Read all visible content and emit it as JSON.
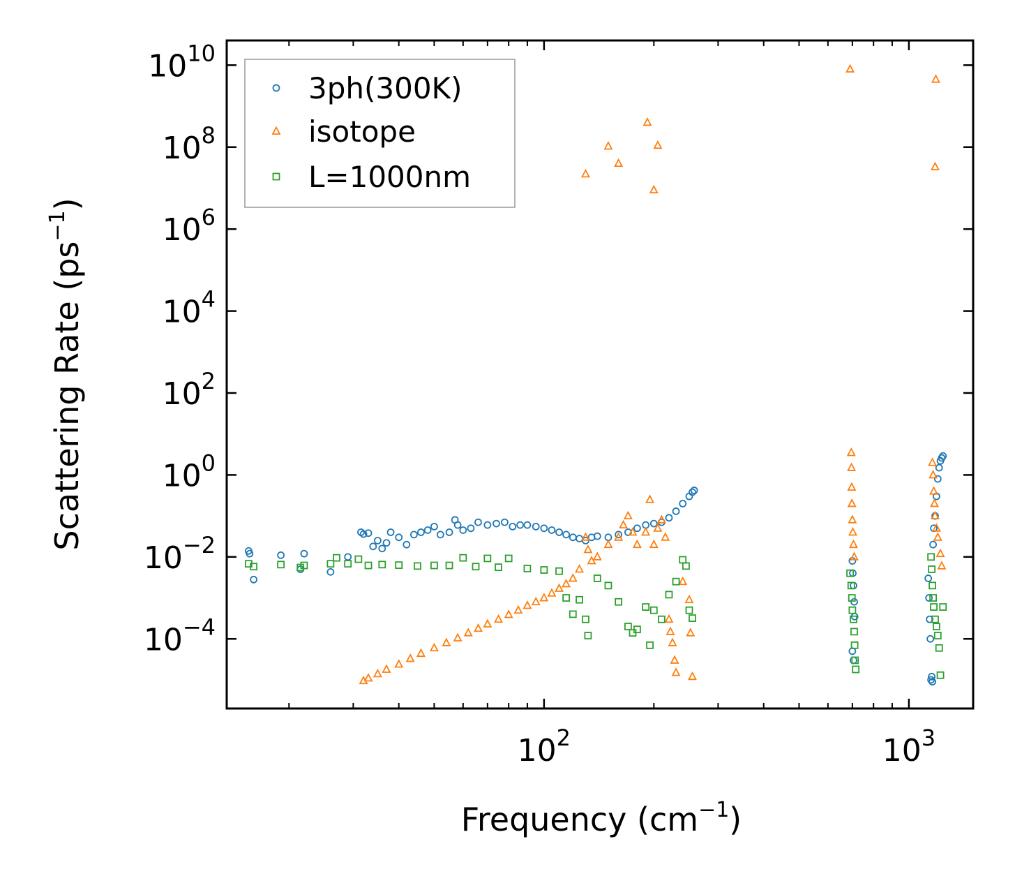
{
  "chart_data": {
    "type": "scatter",
    "xscale": "log",
    "yscale": "log",
    "xlabel": "Frequency (cm",
    "xlabel_sup": "−1",
    "xlabel_close": ")",
    "ylabel": "Scattering Rate (ps",
    "ylabel_sup": "−1",
    "ylabel_close": ")",
    "xlim": [
      13.5,
      1500
    ],
    "ylim": [
      2e-06,
      40000000000.0
    ],
    "x_ticks": [
      {
        "value": 100,
        "base": "10",
        "exp": "2"
      },
      {
        "value": 1000,
        "base": "10",
        "exp": "3"
      }
    ],
    "y_ticks": [
      {
        "value": 0.0001,
        "base": "10",
        "exp": "−4"
      },
      {
        "value": 0.01,
        "base": "10",
        "exp": "−2"
      },
      {
        "value": 1,
        "base": "10",
        "exp": "0"
      },
      {
        "value": 100,
        "base": "10",
        "exp": "2"
      },
      {
        "value": 10000.0,
        "base": "10",
        "exp": "4"
      },
      {
        "value": 1000000.0,
        "base": "10",
        "exp": "6"
      },
      {
        "value": 100000000.0,
        "base": "10",
        "exp": "8"
      },
      {
        "value": 10000000000.0,
        "base": "10",
        "exp": "10"
      }
    ],
    "legend_position": "top-left",
    "series": [
      {
        "name": "3ph(300K)",
        "marker": "circle",
        "color": "#1f77b4",
        "points": [
          [
            15.5,
            0.014
          ],
          [
            15.6,
            0.012
          ],
          [
            16,
            0.0028
          ],
          [
            19,
            0.011
          ],
          [
            21.5,
            0.005
          ],
          [
            22,
            0.012
          ],
          [
            26,
            0.0043
          ],
          [
            29,
            0.01
          ],
          [
            31.5,
            0.04
          ],
          [
            32,
            0.036
          ],
          [
            33,
            0.038
          ],
          [
            34,
            0.018
          ],
          [
            35,
            0.025
          ],
          [
            36,
            0.016
          ],
          [
            37,
            0.022
          ],
          [
            38,
            0.04
          ],
          [
            40,
            0.03
          ],
          [
            42,
            0.02
          ],
          [
            44,
            0.035
          ],
          [
            46,
            0.04
          ],
          [
            48,
            0.045
          ],
          [
            50,
            0.055
          ],
          [
            52,
            0.035
          ],
          [
            55,
            0.04
          ],
          [
            57,
            0.08
          ],
          [
            58,
            0.06
          ],
          [
            60,
            0.045
          ],
          [
            63,
            0.05
          ],
          [
            66,
            0.07
          ],
          [
            70,
            0.06
          ],
          [
            74,
            0.065
          ],
          [
            78,
            0.07
          ],
          [
            82,
            0.055
          ],
          [
            86,
            0.06
          ],
          [
            90,
            0.06
          ],
          [
            95,
            0.055
          ],
          [
            100,
            0.05
          ],
          [
            105,
            0.045
          ],
          [
            110,
            0.04
          ],
          [
            115,
            0.035
          ],
          [
            120,
            0.03
          ],
          [
            125,
            0.028
          ],
          [
            130,
            0.025
          ],
          [
            135,
            0.03
          ],
          [
            140,
            0.032
          ],
          [
            150,
            0.03
          ],
          [
            160,
            0.035
          ],
          [
            170,
            0.04
          ],
          [
            180,
            0.05
          ],
          [
            190,
            0.06
          ],
          [
            200,
            0.065
          ],
          [
            210,
            0.07
          ],
          [
            220,
            0.09
          ],
          [
            230,
            0.13
          ],
          [
            240,
            0.2
          ],
          [
            250,
            0.3
          ],
          [
            255,
            0.38
          ],
          [
            258,
            0.42
          ],
          [
            700,
            0.008
          ],
          [
            702,
            0.004
          ],
          [
            705,
            0.002
          ],
          [
            708,
            0.0008
          ],
          [
            710,
            0.00035
          ],
          [
            700,
            5e-05
          ],
          [
            705,
            3e-05
          ],
          [
            1130,
            0.003
          ],
          [
            1135,
            0.001
          ],
          [
            1140,
            0.0003
          ],
          [
            1145,
            0.0001
          ],
          [
            1150,
            1e-05
          ],
          [
            1155,
            1.2e-05
          ],
          [
            1160,
            9e-06
          ],
          [
            1165,
            0.02
          ],
          [
            1170,
            0.05
          ],
          [
            1180,
            0.1
          ],
          [
            1190,
            0.3
          ],
          [
            1200,
            0.8
          ],
          [
            1210,
            1.5
          ],
          [
            1220,
            2.2
          ],
          [
            1230,
            2.6
          ],
          [
            1240,
            2.9
          ]
        ]
      },
      {
        "name": "isotope",
        "marker": "triangle",
        "color": "#ff7f0e",
        "points": [
          [
            32,
            9.5e-06
          ],
          [
            33,
            1.1e-05
          ],
          [
            35,
            1.4e-05
          ],
          [
            37,
            1.8e-05
          ],
          [
            40,
            2.4e-05
          ],
          [
            43,
            3.3e-05
          ],
          [
            46,
            4.4e-05
          ],
          [
            50,
            6e-05
          ],
          [
            54,
            8e-05
          ],
          [
            58,
            0.000105
          ],
          [
            62,
            0.00014
          ],
          [
            66,
            0.00018
          ],
          [
            70,
            0.00023
          ],
          [
            75,
            0.0003
          ],
          [
            80,
            0.00039
          ],
          [
            85,
            0.0005
          ],
          [
            90,
            0.00065
          ],
          [
            95,
            0.0008
          ],
          [
            100,
            0.001
          ],
          [
            105,
            0.0013
          ],
          [
            110,
            0.0017
          ],
          [
            115,
            0.0022
          ],
          [
            120,
            0.003
          ],
          [
            125,
            0.005
          ],
          [
            130,
            0.03
          ],
          [
            132,
            0.015
          ],
          [
            135,
            0.008
          ],
          [
            140,
            0.01
          ],
          [
            150,
            0.02
          ],
          [
            160,
            0.03
          ],
          [
            165,
            0.06
          ],
          [
            170,
            0.1
          ],
          [
            175,
            0.04
          ],
          [
            180,
            0.02
          ],
          [
            190,
            0.04
          ],
          [
            195,
            0.25
          ],
          [
            200,
            0.02
          ],
          [
            205,
            0.05
          ],
          [
            210,
            0.08
          ],
          [
            215,
            0.03
          ],
          [
            220,
            0.0003
          ],
          [
            222,
            0.00015
          ],
          [
            225,
            8e-05
          ],
          [
            228,
            3e-05
          ],
          [
            230,
            1.5e-05
          ],
          [
            240,
            0.0025
          ],
          [
            250,
            0.0009
          ],
          [
            252,
            0.00014
          ],
          [
            255,
            1.2e-05
          ],
          [
            130,
            22000000
          ],
          [
            150,
            105000000
          ],
          [
            160,
            40000000
          ],
          [
            192,
            400000000
          ],
          [
            200,
            9000000
          ],
          [
            205,
            110000000
          ],
          [
            690,
            8000000000
          ],
          [
            1185,
            4500000000
          ],
          [
            1180,
            33000000
          ],
          [
            695,
            3.5
          ],
          [
            696,
            1.5
          ],
          [
            697,
            0.5
          ],
          [
            698,
            0.2
          ],
          [
            700,
            0.08
          ],
          [
            702,
            0.04
          ],
          [
            705,
            0.02
          ],
          [
            708,
            0.01
          ],
          [
            1160,
            2.0
          ],
          [
            1165,
            1.0
          ],
          [
            1170,
            0.4
          ],
          [
            1175,
            0.2
          ],
          [
            1180,
            0.1
          ],
          [
            1190,
            0.05
          ],
          [
            1200,
            0.03
          ],
          [
            1220,
            0.012
          ],
          [
            1230,
            0.006
          ]
        ]
      },
      {
        "name": "L=1000nm",
        "marker": "square",
        "color": "#2ca02c",
        "points": [
          [
            15.5,
            0.0068
          ],
          [
            16,
            0.0058
          ],
          [
            19,
            0.0065
          ],
          [
            21.5,
            0.0055
          ],
          [
            22,
            0.0062
          ],
          [
            26,
            0.0068
          ],
          [
            27,
            0.0095
          ],
          [
            29,
            0.0068
          ],
          [
            31,
            0.0088
          ],
          [
            33,
            0.0062
          ],
          [
            36,
            0.0065
          ],
          [
            40,
            0.0063
          ],
          [
            45,
            0.006
          ],
          [
            50,
            0.0062
          ],
          [
            55,
            0.0062
          ],
          [
            60,
            0.0095
          ],
          [
            65,
            0.0058
          ],
          [
            70,
            0.0092
          ],
          [
            75,
            0.0056
          ],
          [
            80,
            0.0092
          ],
          [
            90,
            0.0052
          ],
          [
            100,
            0.0048
          ],
          [
            110,
            0.0045
          ],
          [
            115,
            0.001
          ],
          [
            120,
            0.0004
          ],
          [
            125,
            0.0009
          ],
          [
            130,
            0.0003
          ],
          [
            132,
            0.00012
          ],
          [
            140,
            0.003
          ],
          [
            150,
            0.002
          ],
          [
            160,
            0.0008
          ],
          [
            170,
            0.0002
          ],
          [
            175,
            0.00014
          ],
          [
            180,
            0.00017
          ],
          [
            190,
            0.0006
          ],
          [
            195,
            7e-05
          ],
          [
            200,
            0.0005
          ],
          [
            210,
            0.0003
          ],
          [
            220,
            0.0012
          ],
          [
            230,
            0.0025
          ],
          [
            240,
            0.0085
          ],
          [
            245,
            0.006
          ],
          [
            250,
            0.0005
          ],
          [
            255,
            0.00032
          ],
          [
            690,
            0.004
          ],
          [
            695,
            0.002
          ],
          [
            698,
            0.001
          ],
          [
            700,
            0.0005
          ],
          [
            705,
            0.0003
          ],
          [
            708,
            0.00015
          ],
          [
            710,
            7e-05
          ],
          [
            712,
            3e-05
          ],
          [
            715,
            1.8e-05
          ],
          [
            1150,
            0.01
          ],
          [
            1155,
            0.005
          ],
          [
            1160,
            0.002
          ],
          [
            1165,
            0.001
          ],
          [
            1170,
            0.0006
          ],
          [
            1180,
            0.0003
          ],
          [
            1190,
            0.0002
          ],
          [
            1200,
            0.00012
          ],
          [
            1210,
            6e-05
          ],
          [
            1220,
            1.3e-05
          ],
          [
            1240,
            0.0006
          ]
        ]
      }
    ]
  }
}
